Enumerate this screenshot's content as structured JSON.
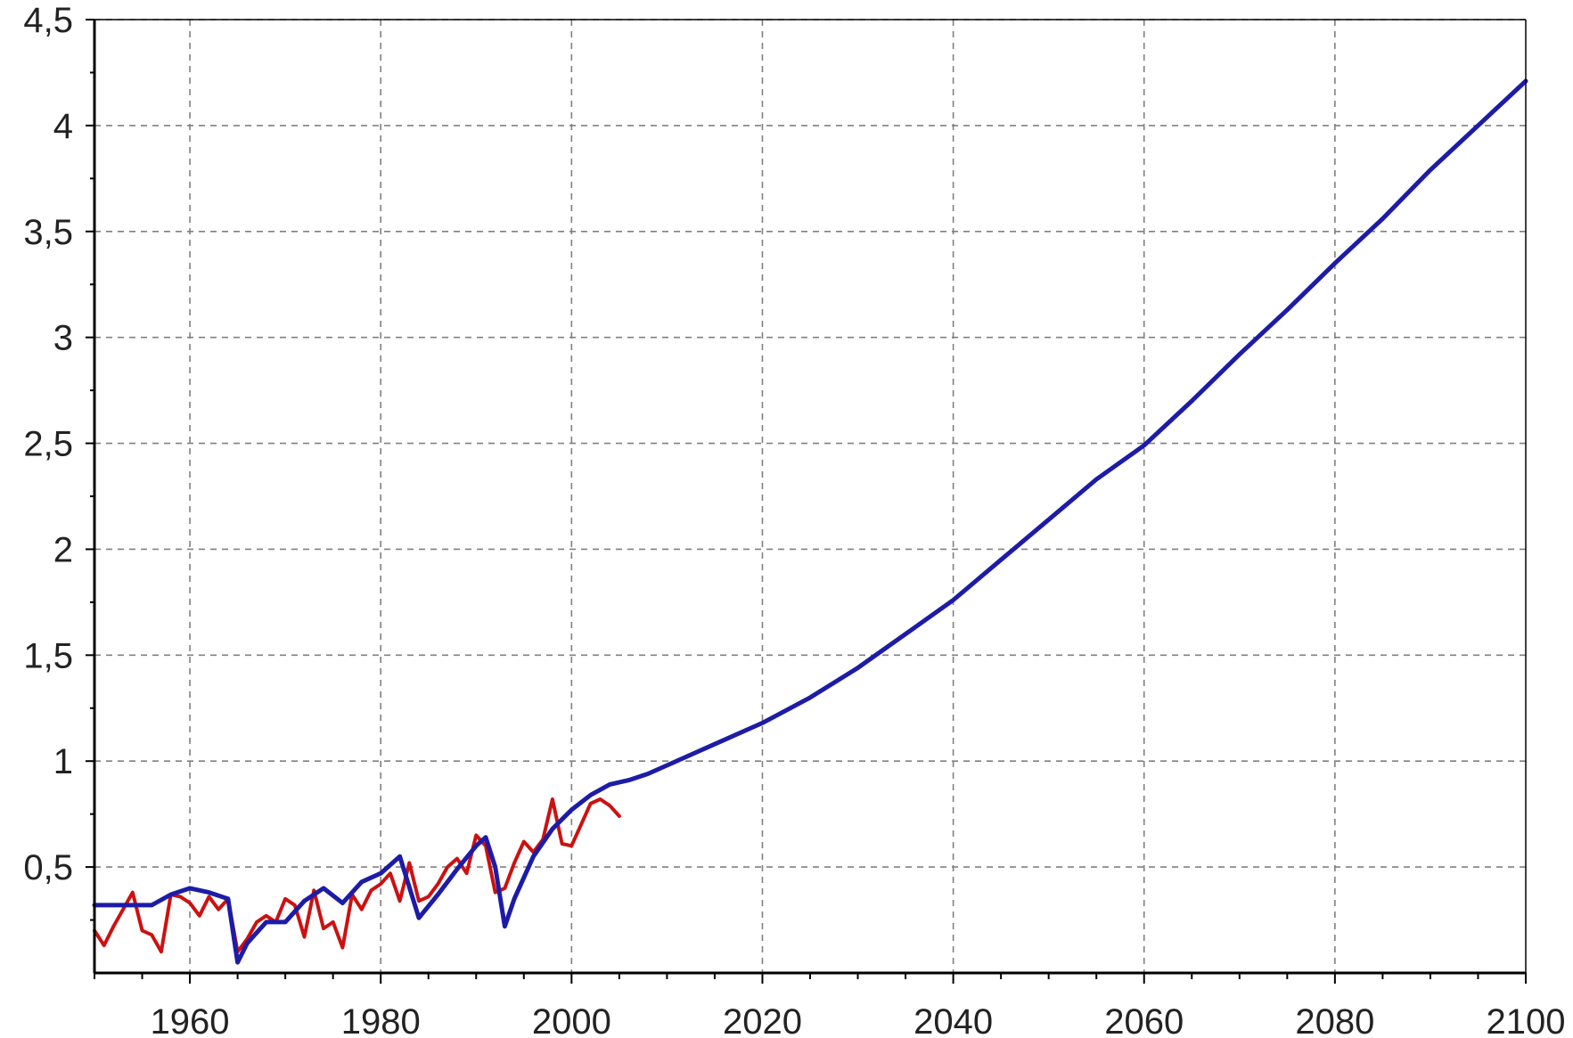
{
  "chart_data": {
    "type": "line",
    "title": "",
    "xlabel": "",
    "ylabel": "",
    "xlim": [
      1950,
      2100
    ],
    "ylim": [
      0,
      4.5
    ],
    "grid": true,
    "legend": "none",
    "x_ticks": [
      {
        "value": 1960,
        "label": "1960"
      },
      {
        "value": 1980,
        "label": "1980"
      },
      {
        "value": 2000,
        "label": "2000"
      },
      {
        "value": 2020,
        "label": "2020"
      },
      {
        "value": 2040,
        "label": "2040"
      },
      {
        "value": 2060,
        "label": "2060"
      },
      {
        "value": 2080,
        "label": "2080"
      },
      {
        "value": 2100,
        "label": "2100"
      }
    ],
    "y_ticks": [
      {
        "value": 0.5,
        "label": "0,5"
      },
      {
        "value": 1,
        "label": "1"
      },
      {
        "value": 1.5,
        "label": "1,5"
      },
      {
        "value": 2,
        "label": "2"
      },
      {
        "value": 2.5,
        "label": "2,5"
      },
      {
        "value": 3,
        "label": "3"
      },
      {
        "value": 3.5,
        "label": "3,5"
      },
      {
        "value": 4,
        "label": "4"
      },
      {
        "value": 4.5,
        "label": "4,5"
      }
    ],
    "series": [
      {
        "color": "#cc1111",
        "x": [
          1950,
          1951,
          1952,
          1953,
          1954,
          1955,
          1956,
          1957,
          1958,
          1959,
          1960,
          1961,
          1962,
          1963,
          1964,
          1965,
          1966,
          1967,
          1968,
          1969,
          1970,
          1971,
          1972,
          1973,
          1974,
          1975,
          1976,
          1977,
          1978,
          1979,
          1980,
          1981,
          1982,
          1983,
          1984,
          1985,
          1986,
          1987,
          1988,
          1989,
          1990,
          1991,
          1992,
          1993,
          1994,
          1995,
          1996,
          1997,
          1998,
          1999,
          2000,
          2001,
          2002,
          2003,
          2004,
          2005
        ],
        "y": [
          0.2,
          0.13,
          0.22,
          0.3,
          0.38,
          0.2,
          0.18,
          0.1,
          0.37,
          0.36,
          0.33,
          0.27,
          0.36,
          0.3,
          0.35,
          0.1,
          0.16,
          0.24,
          0.27,
          0.24,
          0.35,
          0.32,
          0.17,
          0.39,
          0.21,
          0.24,
          0.12,
          0.37,
          0.3,
          0.39,
          0.42,
          0.47,
          0.34,
          0.52,
          0.34,
          0.36,
          0.42,
          0.5,
          0.54,
          0.47,
          0.65,
          0.6,
          0.38,
          0.4,
          0.52,
          0.62,
          0.57,
          0.63,
          0.82,
          0.61,
          0.6,
          0.7,
          0.8,
          0.82,
          0.79,
          0.74
        ]
      },
      {
        "color": "#1c1ca8",
        "x": [
          1950,
          1952,
          1954,
          1956,
          1958,
          1960,
          1962,
          1964,
          1965,
          1966,
          1968,
          1970,
          1972,
          1974,
          1976,
          1978,
          1980,
          1982,
          1984,
          1986,
          1988,
          1990,
          1991,
          1992,
          1993,
          1994,
          1996,
          1998,
          2000,
          2002,
          2004,
          2006,
          2008,
          2010,
          2015,
          2020,
          2025,
          2030,
          2035,
          2040,
          2045,
          2050,
          2055,
          2060,
          2065,
          2070,
          2075,
          2080,
          2085,
          2090,
          2095,
          2100
        ],
        "y": [
          0.32,
          0.32,
          0.32,
          0.32,
          0.37,
          0.4,
          0.38,
          0.35,
          0.05,
          0.14,
          0.24,
          0.24,
          0.34,
          0.4,
          0.33,
          0.43,
          0.47,
          0.55,
          0.26,
          0.37,
          0.49,
          0.6,
          0.64,
          0.5,
          0.22,
          0.35,
          0.55,
          0.68,
          0.77,
          0.84,
          0.89,
          0.91,
          0.94,
          0.98,
          1.08,
          1.18,
          1.3,
          1.44,
          1.6,
          1.76,
          1.95,
          2.14,
          2.33,
          2.49,
          2.7,
          2.92,
          3.13,
          3.35,
          3.56,
          3.79,
          4.0,
          4.21
        ]
      }
    ]
  }
}
